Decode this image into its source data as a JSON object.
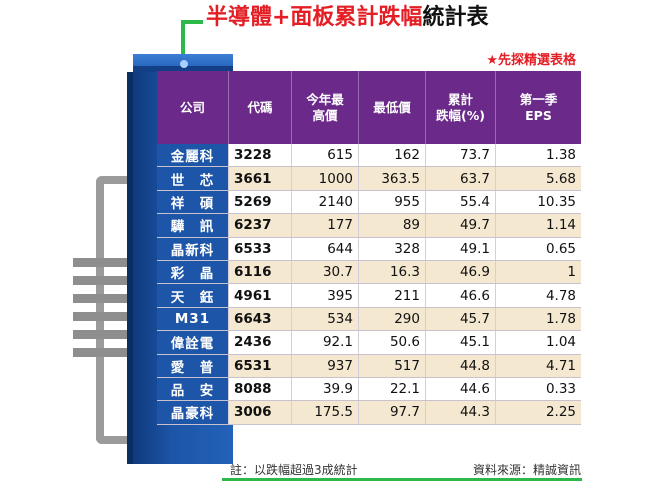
{
  "title": {
    "part_red": "半導體+面板累計跌幅",
    "part_dark": "統計表"
  },
  "subtitle": "★先探精選表格",
  "colors": {
    "accent_red": "#e41e25",
    "header_purple": "#6b2a8a",
    "chip_blue": "#1d55a8",
    "row_stripe": "#f4e8d0",
    "trace_green": "#2db84a"
  },
  "table": {
    "headers": [
      "公司",
      "代碼",
      "今年最\n高價",
      "最低價",
      "累計\n跌幅(%)",
      "第一季\nEPS"
    ],
    "rows": [
      {
        "name": "金麗科",
        "code": "3228",
        "high": "615",
        "low": "162",
        "drop": "73.7",
        "eps": "1.38"
      },
      {
        "name": "世　芯",
        "code": "3661",
        "high": "1000",
        "low": "363.5",
        "drop": "63.7",
        "eps": "5.68"
      },
      {
        "name": "祥　碩",
        "code": "5269",
        "high": "2140",
        "low": "955",
        "drop": "55.4",
        "eps": "10.35"
      },
      {
        "name": "驊　訊",
        "code": "6237",
        "high": "177",
        "low": "89",
        "drop": "49.7",
        "eps": "1.14"
      },
      {
        "name": "晶新科",
        "code": "6533",
        "high": "644",
        "low": "328",
        "drop": "49.1",
        "eps": "0.65"
      },
      {
        "name": "彩　晶",
        "code": "6116",
        "high": "30.7",
        "low": "16.3",
        "drop": "46.9",
        "eps": "1"
      },
      {
        "name": "天　鈺",
        "code": "4961",
        "high": "395",
        "low": "211",
        "drop": "46.6",
        "eps": "4.78"
      },
      {
        "name": "M31",
        "code": "6643",
        "high": "534",
        "low": "290",
        "drop": "45.7",
        "eps": "1.78"
      },
      {
        "name": "偉詮電",
        "code": "2436",
        "high": "92.1",
        "low": "50.6",
        "drop": "45.1",
        "eps": "1.04"
      },
      {
        "name": "愛　普",
        "code": "6531",
        "high": "937",
        "low": "517",
        "drop": "44.8",
        "eps": "4.71"
      },
      {
        "name": "品　安",
        "code": "8088",
        "high": "39.9",
        "low": "22.1",
        "drop": "44.6",
        "eps": "0.33"
      },
      {
        "name": "晶豪科",
        "code": "3006",
        "high": "175.5",
        "low": "97.7",
        "drop": "44.3",
        "eps": "2.25"
      }
    ]
  },
  "footer": {
    "note": "註：以跌幅超過3成統計",
    "source": "資料來源：精誠資訊"
  }
}
